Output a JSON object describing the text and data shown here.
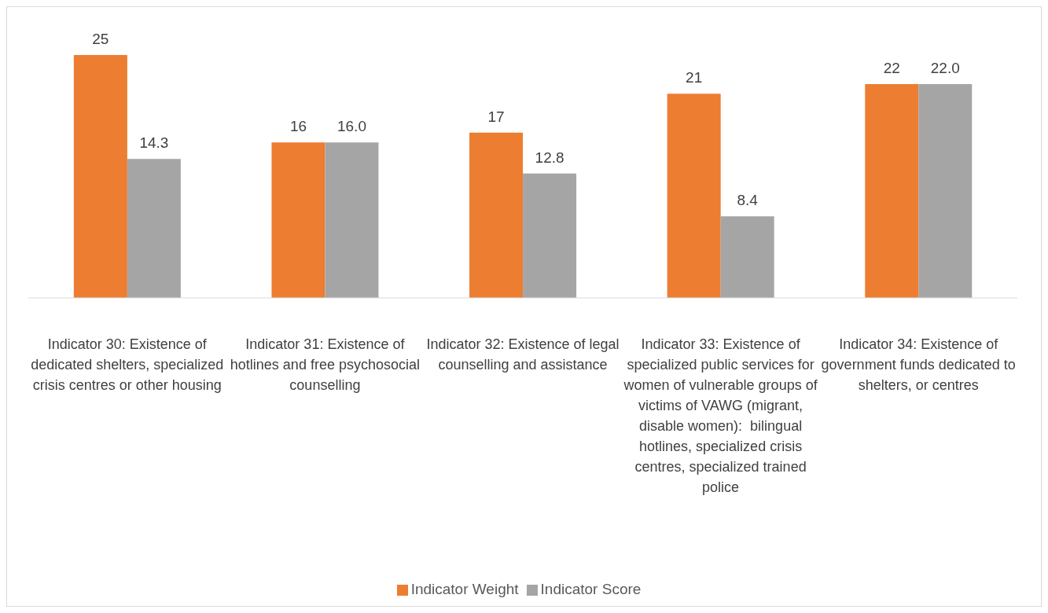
{
  "chart_data": {
    "type": "bar",
    "categories": [
      "Indicator 30: Existence of dedicated shelters, specialized crisis centres or other housing",
      "Indicator 31: Existence of hotlines and free psychosocial counselling",
      "Indicator 32: Existence of legal counselling and assistance",
      "Indicator 33: Existence of specialized public services for women of vulnerable groups of victims of VAWG (migrant, disable women):  bilingual hotlines, specialized crisis centres, specialized trained police",
      "Indicator 34: Existence of government funds dedicated to shelters, or centres"
    ],
    "series": [
      {
        "name": "Indicator Weight",
        "color": "#ed7d31",
        "values": [
          25,
          16,
          17,
          21,
          22
        ],
        "value_labels": [
          "25",
          "16",
          "17",
          "21",
          "22"
        ]
      },
      {
        "name": "Indicator Score",
        "color": "#a5a5a5",
        "values": [
          14.3,
          16.0,
          12.8,
          8.4,
          22.0
        ],
        "value_labels": [
          "14.3",
          "16.0",
          "12.8",
          "8.4",
          "22.0"
        ]
      }
    ],
    "legend": "bottom",
    "grid": false
  }
}
